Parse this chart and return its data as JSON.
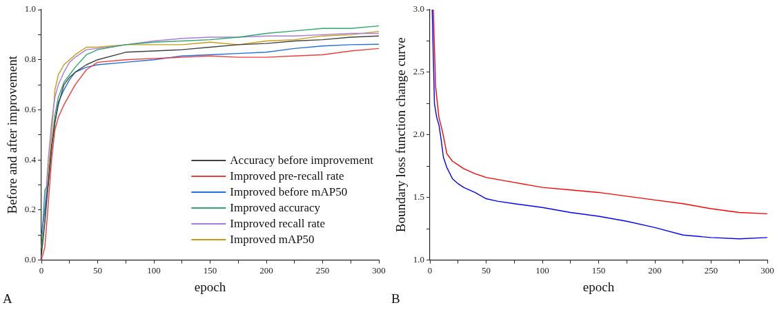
{
  "chart_data": [
    {
      "type": "line",
      "xlabel": "epoch",
      "ylabel": "Before and after improvement",
      "annotations": [
        "A"
      ],
      "xlim": [
        0,
        300
      ],
      "xticks": [
        0,
        {
          "value": 25,
          "label": null
        },
        50,
        {
          "value": 75,
          "label": null
        },
        100,
        {
          "value": 125,
          "label": null
        },
        150,
        {
          "value": 175,
          "label": null
        },
        200,
        {
          "value": 225,
          "label": null
        },
        250,
        {
          "value": 275,
          "label": null
        },
        300
      ],
      "ylim": [
        0,
        1.0
      ],
      "yticks": [
        {
          "value": 0,
          "label": "0.0"
        },
        {
          "value": 0.1,
          "label": null
        },
        0.2,
        {
          "value": 0.3,
          "label": null
        },
        0.4,
        {
          "value": 0.5,
          "label": null
        },
        0.6,
        {
          "value": 0.7,
          "label": null
        },
        0.8,
        {
          "value": 0.9,
          "label": null
        },
        {
          "value": 1.0,
          "label": "1.0"
        }
      ],
      "grid": false,
      "legend": "bottom right",
      "marker": "none",
      "line_style": "solid",
      "x": [
        0,
        3,
        6,
        9,
        12,
        15,
        20,
        25,
        30,
        40,
        50,
        75,
        100,
        125,
        150,
        175,
        200,
        225,
        250,
        275,
        300
      ],
      "series": [
        {
          "name": "Accuracy before improvement",
          "color": "#404040",
          "values": [
            0.02,
            0.15,
            0.3,
            0.45,
            0.55,
            0.62,
            0.7,
            0.73,
            0.75,
            0.78,
            0.8,
            0.83,
            0.835,
            0.84,
            0.85,
            0.86,
            0.865,
            0.875,
            0.88,
            0.89,
            0.895
          ]
        },
        {
          "name": "Improved pre-recall rate",
          "color": "#f03c3c",
          "values": [
            0.0,
            0.05,
            0.22,
            0.4,
            0.52,
            0.57,
            0.62,
            0.66,
            0.7,
            0.76,
            0.79,
            0.8,
            0.805,
            0.81,
            0.815,
            0.81,
            0.81,
            0.815,
            0.82,
            0.835,
            0.845
          ]
        },
        {
          "name": "Improved before mAP50",
          "color": "#1f6fe0",
          "values": [
            0.1,
            0.2,
            0.3,
            0.45,
            0.55,
            0.63,
            0.68,
            0.72,
            0.75,
            0.77,
            0.78,
            0.79,
            0.8,
            0.815,
            0.82,
            0.825,
            0.83,
            0.845,
            0.855,
            0.86,
            0.862
          ]
        },
        {
          "name": "Improved accuracy",
          "color": "#2ea86a",
          "values": [
            0.05,
            0.28,
            0.3,
            0.45,
            0.58,
            0.65,
            0.71,
            0.74,
            0.77,
            0.82,
            0.84,
            0.86,
            0.87,
            0.875,
            0.88,
            0.89,
            0.905,
            0.915,
            0.925,
            0.925,
            0.935
          ]
        },
        {
          "name": "Improved recall rate",
          "color": "#a77ce0",
          "values": [
            0.1,
            0.2,
            0.4,
            0.55,
            0.65,
            0.7,
            0.75,
            0.79,
            0.81,
            0.84,
            0.845,
            0.86,
            0.875,
            0.885,
            0.89,
            0.89,
            0.895,
            0.895,
            0.9,
            0.905,
            0.905
          ]
        },
        {
          "name": "Improved mAP50",
          "color": "#c89b10",
          "values": [
            0.05,
            0.15,
            0.35,
            0.5,
            0.68,
            0.74,
            0.78,
            0.8,
            0.82,
            0.85,
            0.85,
            0.86,
            0.86,
            0.86,
            0.87,
            0.86,
            0.875,
            0.88,
            0.895,
            0.9,
            0.913
          ]
        }
      ]
    },
    {
      "type": "line",
      "xlabel": "epoch",
      "ylabel": "Boundary loss function change curve",
      "annotations": [
        "B"
      ],
      "xlim": [
        0,
        300
      ],
      "xticks": [
        0,
        {
          "value": 25,
          "label": null
        },
        50,
        {
          "value": 75,
          "label": null
        },
        100,
        {
          "value": 125,
          "label": null
        },
        150,
        {
          "value": 175,
          "label": null
        },
        200,
        {
          "value": 225,
          "label": null
        },
        250,
        {
          "value": 275,
          "label": null
        },
        300
      ],
      "ylim": [
        1.0,
        3.0
      ],
      "yticks": [
        {
          "value": 1.0,
          "label": "1.0"
        },
        {
          "value": 1.25,
          "label": null
        },
        1.5,
        {
          "value": 1.75,
          "label": null
        },
        {
          "value": 2.0,
          "label": "2.0"
        },
        {
          "value": 2.25,
          "label": null
        },
        2.5,
        {
          "value": 2.75,
          "label": null
        },
        {
          "value": 3.0,
          "label": "3.0"
        }
      ],
      "grid": false,
      "marker": "none",
      "line_style": "solid",
      "series": [
        {
          "color": "#0000ff",
          "x": [
            2,
            4,
            6,
            8,
            10,
            12,
            15,
            20,
            25,
            30,
            40,
            50,
            60,
            75,
            100,
            125,
            150,
            175,
            200,
            225,
            250,
            275,
            300
          ],
          "values": [
            3.0,
            2.25,
            2.14,
            2.08,
            1.96,
            1.82,
            1.74,
            1.65,
            1.61,
            1.58,
            1.54,
            1.49,
            1.47,
            1.45,
            1.42,
            1.38,
            1.35,
            1.31,
            1.26,
            1.2,
            1.18,
            1.17,
            1.18
          ]
        },
        {
          "color": "#ff0000",
          "x": [
            3,
            5,
            8,
            10,
            12,
            15,
            20,
            25,
            30,
            40,
            50,
            75,
            100,
            125,
            150,
            175,
            200,
            225,
            250,
            275,
            300
          ],
          "values": [
            3.0,
            2.39,
            2.14,
            2.07,
            1.99,
            1.85,
            1.79,
            1.76,
            1.73,
            1.69,
            1.66,
            1.62,
            1.58,
            1.56,
            1.54,
            1.51,
            1.48,
            1.45,
            1.41,
            1.38,
            1.37
          ]
        }
      ]
    }
  ]
}
